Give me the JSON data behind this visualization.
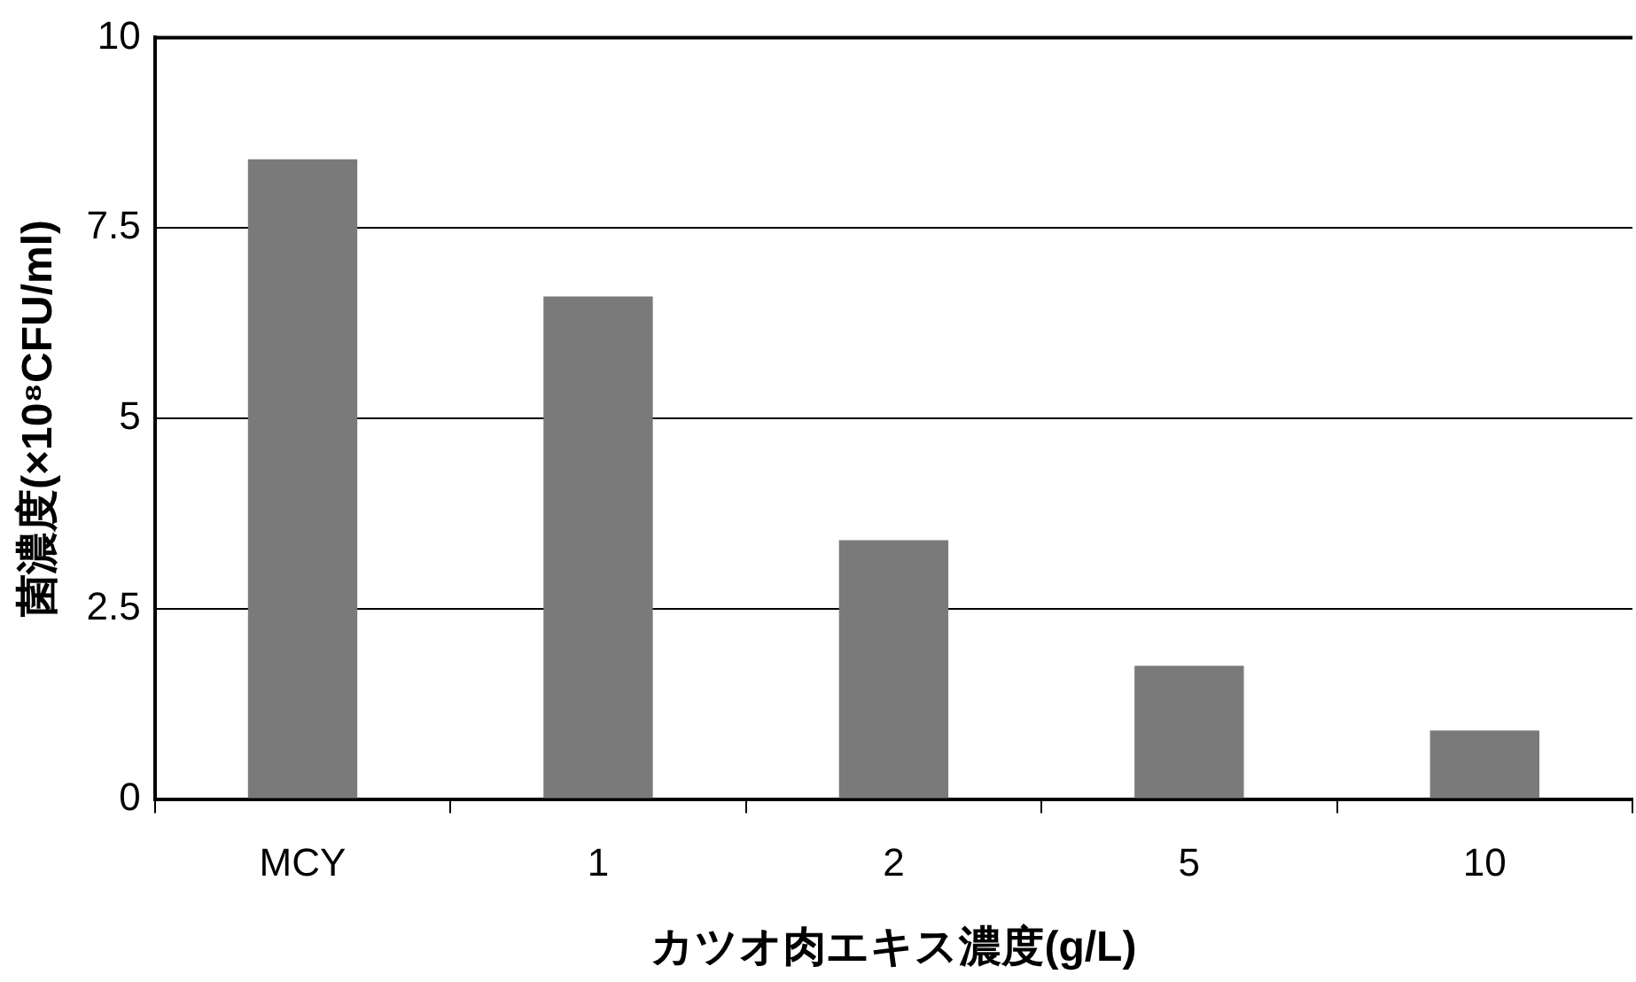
{
  "chart_data": {
    "type": "bar",
    "xlabel": "カツオ肉エキス濃度(g/L)",
    "ylabel": "菌濃度(×10⁸CFU/ml)",
    "categories": [
      "MCY",
      "1",
      "2",
      "5",
      "10"
    ],
    "values": [
      8.4,
      6.6,
      3.4,
      1.75,
      0.9
    ],
    "color": "#7a7a7a",
    "ylim": [
      0,
      10
    ],
    "yticks": [
      0,
      {
        "value": 2.5,
        "label": "2.5"
      },
      5,
      {
        "value": 7.5,
        "label": "7.5"
      },
      10
    ],
    "grid": "y",
    "legend": false
  }
}
